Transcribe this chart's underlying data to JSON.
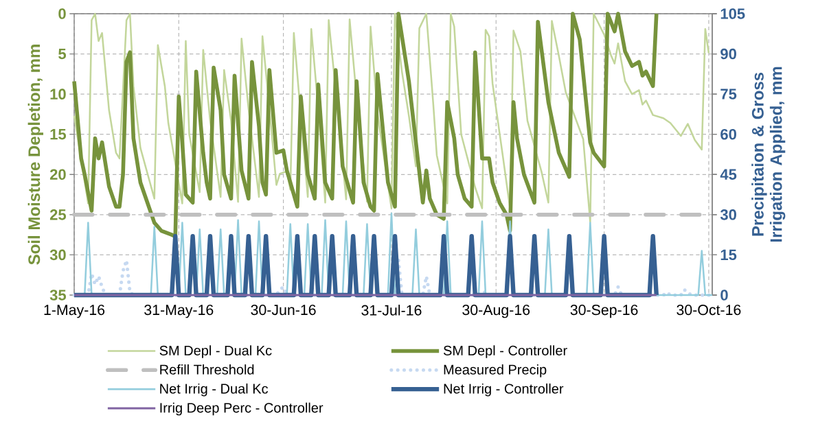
{
  "chart_data": {
    "type": "line",
    "ylabel": "Soil Moisture Depletion, mm",
    "y2label": "Precipitaion & Gross Irrigation Applied, mm",
    "xlim": [
      "2016-05-01",
      "2016-10-31"
    ],
    "xticks": [
      {
        "value": "2016-05-01",
        "label": "1-May-16"
      },
      {
        "value": "2016-05-31",
        "label": "31-May-16"
      },
      {
        "value": "2016-06-30",
        "label": "30-Jun-16"
      },
      {
        "value": "2016-07-31",
        "label": "31-Jul-16"
      },
      {
        "value": "2016-08-30",
        "label": "30-Aug-16"
      },
      {
        "value": "2016-09-30",
        "label": "30-Sep-16"
      },
      {
        "value": "2016-10-30",
        "label": "30-Oct-16"
      }
    ],
    "ylim": [
      35,
      0
    ],
    "yticks": [
      0,
      5,
      10,
      15,
      20,
      25,
      30,
      35
    ],
    "y2lim": [
      0,
      105
    ],
    "y2ticks": [
      0,
      15,
      30,
      45,
      60,
      75,
      90,
      105
    ],
    "grid": true,
    "legend": "bottom",
    "series": [
      {
        "name": "SM Depl - Dual Kc",
        "color": "#c3d69b",
        "x": [
          "2016-05-01",
          "2016-05-05",
          "2016-05-06",
          "2016-05-07",
          "2016-05-08",
          "2016-05-09",
          "2016-05-11",
          "2016-05-13",
          "2016-05-14",
          "2016-05-16",
          "2016-05-17",
          "2016-05-18",
          "2016-05-20",
          "2016-05-24",
          "2016-05-25",
          "2016-05-27",
          "2016-05-28",
          "2016-06-01",
          "2016-06-02",
          "2016-06-03",
          "2016-06-06",
          "2016-06-07",
          "2016-06-09",
          "2016-06-12",
          "2016-06-13",
          "2016-06-15",
          "2016-06-17",
          "2016-06-18",
          "2016-06-20",
          "2016-06-23",
          "2016-06-24",
          "2016-06-26",
          "2016-06-28",
          "2016-06-29",
          "2016-07-01",
          "2016-07-02",
          "2016-07-03",
          "2016-07-05",
          "2016-07-07",
          "2016-07-08",
          "2016-07-10",
          "2016-07-12",
          "2016-07-13",
          "2016-07-15",
          "2016-07-18",
          "2016-07-19",
          "2016-07-21",
          "2016-07-24",
          "2016-07-25",
          "2016-07-27",
          "2016-07-31",
          "2016-08-01",
          "2016-08-03",
          "2016-08-05",
          "2016-08-07",
          "2016-08-08",
          "2016-08-10",
          "2016-08-12",
          "2016-08-13",
          "2016-08-16",
          "2016-08-17",
          "2016-08-18",
          "2016-08-20",
          "2016-08-24",
          "2016-08-26",
          "2016-08-27",
          "2016-08-28",
          "2016-08-29",
          "2016-09-01",
          "2016-09-03",
          "2016-09-04",
          "2016-09-06",
          "2016-09-08",
          "2016-09-12",
          "2016-09-14",
          "2016-09-15",
          "2016-09-17",
          "2016-09-19",
          "2016-09-21",
          "2016-09-24",
          "2016-09-26",
          "2016-09-27",
          "2016-09-30",
          "2016-10-02",
          "2016-10-03",
          "2016-10-04",
          "2016-10-06",
          "2016-10-08",
          "2016-10-10",
          "2016-10-11",
          "2016-10-12",
          "2016-10-14",
          "2016-10-17",
          "2016-10-19",
          "2016-10-22",
          "2016-10-24",
          "2016-10-26",
          "2016-10-28",
          "2016-10-29",
          "2016-10-30"
        ],
        "values": [
          12.7,
          23.6,
          0.8,
          0,
          3.4,
          2.4,
          12,
          17.3,
          18,
          0.8,
          0,
          9,
          16.7,
          23,
          3.9,
          9,
          13.6,
          23.6,
          3.4,
          15,
          22.2,
          4.5,
          13.3,
          22.8,
          7,
          13.3,
          23.4,
          3.1,
          11.8,
          22.8,
          2.8,
          11.8,
          21.3,
          19.9,
          19.6,
          21.9,
          2.4,
          12.7,
          22.8,
          1.9,
          11.8,
          23.5,
          0.8,
          9.5,
          23.1,
          0.7,
          10.4,
          23.4,
          1.6,
          12.4,
          24.2,
          0,
          7.2,
          12.7,
          19,
          1.8,
          0,
          11.3,
          17.6,
          23.6,
          0,
          1.6,
          15,
          21.6,
          24.2,
          2,
          2.8,
          8.7,
          17.9,
          24.2,
          2.1,
          4.7,
          13.3,
          19.6,
          23.5,
          0.9,
          5.2,
          9.8,
          12.1,
          15.6,
          25.9,
          0,
          2.6,
          5.2,
          6.2,
          3.7,
          8.4,
          10,
          9.5,
          11.3,
          10.8,
          12.6,
          13,
          13.6,
          15.2,
          13.7,
          15.7,
          16.9,
          1.9,
          4.9
        ]
      },
      {
        "name": "SM Depl - Controller",
        "color": "#77933c",
        "x": [
          "2016-05-01",
          "2016-05-03",
          "2016-05-04",
          "2016-05-06",
          "2016-05-07",
          "2016-05-08",
          "2016-05-09",
          "2016-05-11",
          "2016-05-13",
          "2016-05-14",
          "2016-05-15",
          "2016-05-16",
          "2016-05-17",
          "2016-05-18",
          "2016-05-20",
          "2016-05-22",
          "2016-05-24",
          "2016-05-26",
          "2016-05-29",
          "2016-05-30",
          "2016-05-31",
          "2016-06-01",
          "2016-06-02",
          "2016-06-04",
          "2016-06-05",
          "2016-06-07",
          "2016-06-08",
          "2016-06-09",
          "2016-06-10",
          "2016-06-12",
          "2016-06-13",
          "2016-06-15",
          "2016-06-16",
          "2016-06-18",
          "2016-06-20",
          "2016-06-21",
          "2016-06-23",
          "2016-06-24",
          "2016-06-25",
          "2016-06-26",
          "2016-06-28",
          "2016-06-30",
          "2016-07-01",
          "2016-07-04",
          "2016-07-05",
          "2016-07-07",
          "2016-07-09",
          "2016-07-10",
          "2016-07-12",
          "2016-07-14",
          "2016-07-15",
          "2016-07-17",
          "2016-07-20",
          "2016-07-21",
          "2016-07-23",
          "2016-07-25",
          "2016-07-26",
          "2016-07-27",
          "2016-07-30",
          "2016-08-01",
          "2016-08-02",
          "2016-08-05",
          "2016-08-07",
          "2016-08-09",
          "2016-08-10",
          "2016-08-11",
          "2016-08-13",
          "2016-08-15",
          "2016-08-16",
          "2016-08-18",
          "2016-08-19",
          "2016-08-21",
          "2016-08-23",
          "2016-08-24",
          "2016-08-26",
          "2016-08-28",
          "2016-08-29",
          "2016-08-31",
          "2016-09-02",
          "2016-09-03",
          "2016-09-04",
          "2016-09-05",
          "2016-09-07",
          "2016-09-10",
          "2016-09-11",
          "2016-09-14",
          "2016-09-17",
          "2016-09-20",
          "2016-09-21",
          "2016-09-23",
          "2016-09-26",
          "2016-09-27",
          "2016-09-30",
          "2016-10-01",
          "2016-10-03",
          "2016-10-04",
          "2016-10-06",
          "2016-10-08",
          "2016-10-10",
          "2016-10-11",
          "2016-10-12",
          "2016-10-14",
          "2016-10-15"
        ],
        "values": [
          8.4,
          18,
          20,
          24.5,
          15.5,
          18,
          16,
          21.5,
          24,
          24,
          20,
          6,
          4.8,
          15.5,
          21,
          23.5,
          26,
          27,
          27.5,
          27.7,
          10.3,
          16,
          22.5,
          23.5,
          7.2,
          17.3,
          21,
          23,
          6.7,
          12,
          20,
          23,
          7.7,
          19.5,
          23,
          6,
          14,
          21,
          22.5,
          7,
          17.3,
          17,
          19.5,
          24,
          10.3,
          20,
          23,
          8.8,
          21,
          23,
          7,
          19,
          23.5,
          8.4,
          21,
          24,
          24.5,
          7.5,
          21,
          24,
          0,
          8.4,
          16,
          23.5,
          19.5,
          23,
          25,
          25.5,
          11,
          15.5,
          20,
          23,
          24,
          4.8,
          18,
          18,
          21,
          23.5,
          25,
          27,
          11,
          15.5,
          20,
          23.5,
          1,
          11,
          17.3,
          20.3,
          0,
          3.2,
          16,
          17.3,
          19,
          0,
          2.2,
          0,
          4.7,
          6.5,
          6,
          7.7,
          7.2,
          9,
          0
        ]
      },
      {
        "name": "Refill Threshold",
        "color": "#bfbfbf",
        "line_style": "dashed",
        "x": [
          "2016-05-01",
          "2016-10-31"
        ],
        "values": [
          25,
          25
        ]
      },
      {
        "name": "Measured Precip",
        "color": "#c6d9f1",
        "line_style": "dotted",
        "axis": "y2",
        "x": [
          "2016-05-01",
          "2016-05-05",
          "2016-05-06",
          "2016-05-07",
          "2016-05-08",
          "2016-05-09",
          "2016-05-10",
          "2016-05-14",
          "2016-05-15",
          "2016-05-16",
          "2016-05-17",
          "2016-05-18",
          "2016-06-28",
          "2016-06-29",
          "2016-06-30",
          "2016-07-01",
          "2016-08-01",
          "2016-08-02",
          "2016-08-03",
          "2016-08-09",
          "2016-08-10",
          "2016-08-11",
          "2016-08-16",
          "2016-08-17",
          "2016-08-18",
          "2016-08-26",
          "2016-08-27",
          "2016-08-28",
          "2016-10-03",
          "2016-10-04",
          "2016-10-05",
          "2016-10-17",
          "2016-10-18",
          "2016-10-19",
          "2016-10-22",
          "2016-10-23",
          "2016-10-24",
          "2016-10-25",
          "2016-10-31"
        ],
        "values": [
          0,
          0,
          8,
          4,
          7,
          3,
          0,
          0,
          9,
          13,
          1,
          0,
          0,
          2,
          3,
          0,
          0,
          13,
          0,
          0,
          7,
          0,
          0,
          1.5,
          0,
          0,
          1.5,
          0,
          0,
          3,
          0,
          0,
          1,
          0,
          0,
          2,
          1,
          0,
          0
        ]
      },
      {
        "name": "Net Irrig - Dual Kc",
        "color": "#93cddd",
        "axis": "y2",
        "x": [
          "2016-05-01",
          "2016-05-04",
          "2016-05-05",
          "2016-05-06",
          "2016-05-23",
          "2016-05-24",
          "2016-05-25",
          "2016-05-31",
          "2016-06-01",
          "2016-06-02",
          "2016-06-05",
          "2016-06-06",
          "2016-06-07",
          "2016-06-11",
          "2016-06-12",
          "2016-06-13",
          "2016-06-16",
          "2016-06-17",
          "2016-06-18",
          "2016-06-22",
          "2016-06-23",
          "2016-06-24",
          "2016-07-01",
          "2016-07-02",
          "2016-07-03",
          "2016-07-06",
          "2016-07-07",
          "2016-07-08",
          "2016-07-11",
          "2016-07-12",
          "2016-07-13",
          "2016-07-17",
          "2016-07-18",
          "2016-07-19",
          "2016-07-23",
          "2016-07-24",
          "2016-07-25",
          "2016-07-30",
          "2016-07-31",
          "2016-08-01",
          "2016-08-06",
          "2016-08-07",
          "2016-08-08",
          "2016-08-15",
          "2016-08-16",
          "2016-08-17",
          "2016-08-25",
          "2016-08-26",
          "2016-08-27",
          "2016-09-02",
          "2016-09-03",
          "2016-09-04",
          "2016-09-13",
          "2016-09-14",
          "2016-09-15",
          "2016-09-25",
          "2016-09-26",
          "2016-09-27",
          "2016-10-27",
          "2016-10-28",
          "2016-10-29",
          "2016-10-31"
        ],
        "values": [
          0,
          0,
          27,
          0,
          0,
          25.5,
          0,
          0,
          27,
          0,
          0,
          24.5,
          0,
          0,
          24.5,
          0,
          0,
          28,
          0,
          0,
          27.5,
          0,
          0,
          26.5,
          0,
          0,
          26.5,
          0,
          0,
          28,
          0,
          0,
          27.5,
          0,
          0,
          26.5,
          0,
          0,
          30.5,
          0,
          0,
          24.5,
          0,
          0,
          27.5,
          0,
          0,
          27.5,
          0,
          0,
          27.5,
          0,
          0,
          24.5,
          0,
          0,
          27,
          0,
          0,
          16.5,
          0,
          0
        ]
      },
      {
        "name": "Net Irrig - Controller",
        "color": "#366092",
        "axis": "y2",
        "x": [
          "2016-05-01",
          "2016-05-29",
          "2016-05-30",
          "2016-05-31",
          "2016-06-03",
          "2016-06-04",
          "2016-06-05",
          "2016-06-08",
          "2016-06-09",
          "2016-06-10",
          "2016-06-14",
          "2016-06-15",
          "2016-06-16",
          "2016-06-19",
          "2016-06-20",
          "2016-06-21",
          "2016-06-24",
          "2016-06-25",
          "2016-06-26",
          "2016-07-03",
          "2016-07-04",
          "2016-07-05",
          "2016-07-08",
          "2016-07-09",
          "2016-07-10",
          "2016-07-13",
          "2016-07-14",
          "2016-07-15",
          "2016-07-19",
          "2016-07-20",
          "2016-07-21",
          "2016-07-25",
          "2016-07-26",
          "2016-07-27",
          "2016-07-31",
          "2016-08-01",
          "2016-08-02",
          "2016-08-14",
          "2016-08-15",
          "2016-08-16",
          "2016-08-22",
          "2016-08-23",
          "2016-08-24",
          "2016-09-02",
          "2016-09-03",
          "2016-09-04",
          "2016-09-09",
          "2016-09-10",
          "2016-09-11",
          "2016-09-19",
          "2016-09-20",
          "2016-09-21",
          "2016-09-29",
          "2016-09-30",
          "2016-10-01",
          "2016-10-13",
          "2016-10-14",
          "2016-10-15"
        ],
        "values": [
          0,
          0,
          22,
          0,
          0,
          22,
          0,
          0,
          22,
          0,
          0,
          22,
          0,
          0,
          22,
          0,
          0,
          22,
          0,
          0,
          22,
          0,
          0,
          22,
          0,
          0,
          22,
          0,
          0,
          22,
          0,
          0,
          22,
          0,
          0,
          22,
          0,
          0,
          22,
          0,
          0,
          22,
          0,
          0,
          22,
          0,
          0,
          22,
          0,
          0,
          22,
          0,
          0,
          22,
          0,
          0,
          22,
          0
        ]
      },
      {
        "name": "Irrig Deep Perc - Controller",
        "color": "#8064a2",
        "axis": "y2",
        "x": [
          "2016-05-01",
          "2016-10-15"
        ],
        "values": [
          0,
          0
        ]
      }
    ]
  }
}
